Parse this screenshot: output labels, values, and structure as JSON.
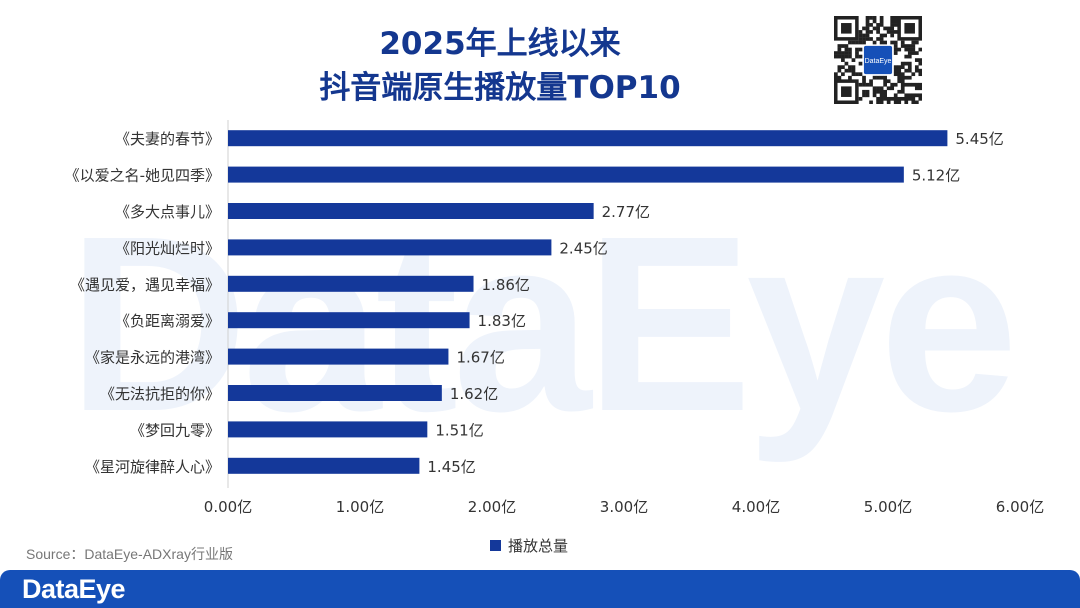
{
  "header": {
    "title_line1": "2025年上线以来",
    "title_line2": "抖音端原生播放量TOP10"
  },
  "qr": {
    "badge_text": "DataEye"
  },
  "watermark": "DataEye",
  "chart_data": {
    "type": "bar",
    "orientation": "horizontal",
    "title": "2025年上线以来 抖音端原生播放量TOP10",
    "categories": [
      "《夫妻的春节》",
      "《以爱之名-她见四季》",
      "《多大点事儿》",
      "《阳光灿烂时》",
      "《遇见爱，遇见幸福》",
      "《负距离溺爱》",
      "《家是永远的港湾》",
      "《无法抗拒的你》",
      "《梦回九零》",
      "《星河旋律醉人心》"
    ],
    "values": [
      5.45,
      5.12,
      2.77,
      2.45,
      1.86,
      1.83,
      1.67,
      1.62,
      1.51,
      1.45
    ],
    "value_labels": [
      "5.45亿",
      "5.12亿",
      "2.77亿",
      "2.45亿",
      "1.86亿",
      "1.83亿",
      "1.67亿",
      "1.62亿",
      "1.51亿",
      "1.45亿"
    ],
    "xlim": [
      0,
      6
    ],
    "xticks": [
      0,
      1,
      2,
      3,
      4,
      5,
      6
    ],
    "xtick_labels": [
      "0.00亿",
      "1.00亿",
      "2.00亿",
      "3.00亿",
      "4.00亿",
      "5.00亿",
      "6.00亿"
    ],
    "series_name": "播放总量",
    "bar_color": "#14389a",
    "grid": false,
    "legend": "bottom-center"
  },
  "source": "Source：DataEye-ADXray行业版",
  "footer": {
    "brand": "DataEye"
  },
  "colors": {
    "title": "#14378f",
    "bar": "#14389a",
    "footer": "#1550b8",
    "watermark": "#eef3fb"
  }
}
